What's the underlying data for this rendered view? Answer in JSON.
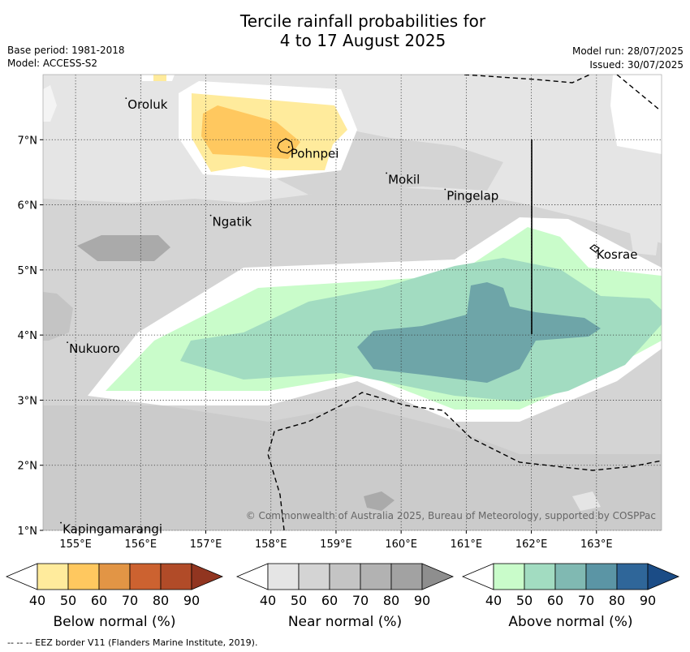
{
  "header": {
    "title_line1": "Tercile rainfall probabilities for",
    "title_line2": "4 to 17 August 2025",
    "base_period": "Base period: 1981-2018",
    "model": "Model: ACCESS-S2",
    "model_run": "Model run: 28/07/2025",
    "issued": "Issued: 30/07/2025"
  },
  "map": {
    "lon_ticks": [
      "155°E",
      "156°E",
      "157°E",
      "158°E",
      "159°E",
      "160°E",
      "161°E",
      "162°E",
      "163°E"
    ],
    "lat_ticks": [
      "7°N",
      "6°N",
      "5°N",
      "4°N",
      "3°N",
      "2°N",
      "1°N"
    ],
    "islands": [
      {
        "name": "Oroluk",
        "lon": 155.8,
        "lat": 7.6
      },
      {
        "name": "Pohnpei",
        "lon": 158.3,
        "lat": 6.85
      },
      {
        "name": "Mokil",
        "lon": 159.8,
        "lat": 6.45
      },
      {
        "name": "Pingelap",
        "lon": 160.7,
        "lat": 6.2
      },
      {
        "name": "Ngatik",
        "lon": 157.1,
        "lat": 5.8
      },
      {
        "name": "Kosrae",
        "lon": 163.0,
        "lat": 5.3
      },
      {
        "name": "Nukuoro",
        "lon": 154.9,
        "lat": 3.85
      },
      {
        "name": "Kapingamarangi",
        "lon": 154.8,
        "lat": 1.08
      }
    ],
    "copyright": "© Commonwealth of Australia 2025, Bureau of Meteorology, supported by COSPPac"
  },
  "legends": [
    {
      "label": "Below normal (%)",
      "colors": [
        "#ffeb9c",
        "#ffc85f",
        "#e29545",
        "#cc6230",
        "#b14b28",
        "#913520"
      ]
    },
    {
      "label": "Near normal (%)",
      "colors": [
        "#e5e5e5",
        "#d4d4d4",
        "#c4c4c4",
        "#b2b2b2",
        "#a2a2a2",
        "#8e8e8e"
      ]
    },
    {
      "label": "Above normal (%)",
      "colors": [
        "#c9fcca",
        "#a2dcc1",
        "#80b9b2",
        "#5b95a5",
        "#2f6699",
        "#1b4c86"
      ]
    }
  ],
  "legend_ticks": [
    "40",
    "50",
    "60",
    "70",
    "80",
    "90"
  ],
  "footer": {
    "eez_note": "--  --  -- EEZ border V11 (Flanders Marine Institute, 2019)."
  }
}
